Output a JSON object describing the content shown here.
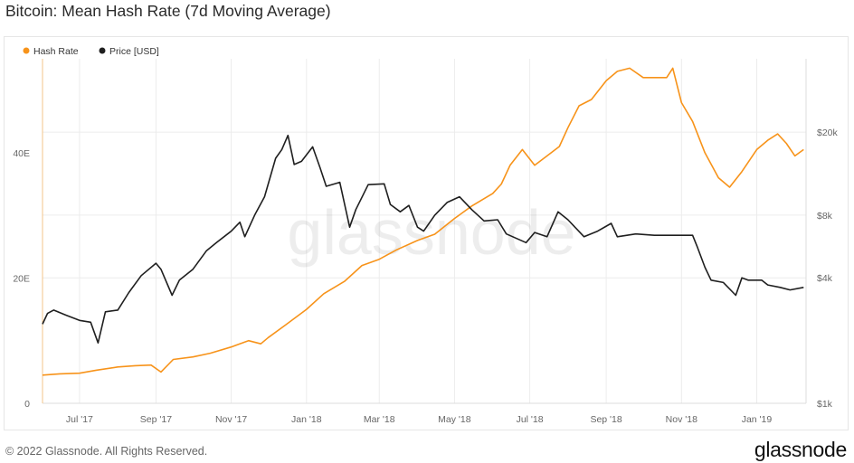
{
  "title": "Bitcoin: Mean Hash Rate (7d Moving Average)",
  "footer": {
    "copyright": "© 2022 Glassnode. All Rights Reserved.",
    "logo": "glassnode"
  },
  "watermark": "glassnode",
  "colors": {
    "hash_rate": "#f7931a",
    "price": "#1f1f1f",
    "grid": "#ececec",
    "axis_text": "#666666"
  },
  "chart_data": {
    "type": "line",
    "legend": {
      "placement": "top-left",
      "items": [
        "Hash Rate",
        "Price [USD]"
      ]
    },
    "grid": true,
    "x_range": [
      "2017-06-01",
      "2019-02-10"
    ],
    "x_ticks": [
      {
        "date": "2017-07-01",
        "label": "Jul '17"
      },
      {
        "date": "2017-09-01",
        "label": "Sep '17"
      },
      {
        "date": "2017-11-01",
        "label": "Nov '17"
      },
      {
        "date": "2018-01-01",
        "label": "Jan '18"
      },
      {
        "date": "2018-03-01",
        "label": "Mar '18"
      },
      {
        "date": "2018-05-01",
        "label": "May '18"
      },
      {
        "date": "2018-07-01",
        "label": "Jul '18"
      },
      {
        "date": "2018-09-01",
        "label": "Sep '18"
      },
      {
        "date": "2018-11-01",
        "label": "Nov '18"
      },
      {
        "date": "2019-01-01",
        "label": "Jan '19"
      }
    ],
    "y_left": {
      "range": [
        0,
        55
      ],
      "unit": "E",
      "ticks": [
        {
          "value": 0,
          "label": "0"
        },
        {
          "value": 20,
          "label": "20E"
        },
        {
          "value": 40,
          "label": "40E"
        }
      ]
    },
    "y_right": {
      "scale": "log",
      "range": [
        1000,
        45000
      ],
      "ticks": [
        {
          "value": 1000,
          "label": "$1k"
        },
        {
          "value": 4000,
          "label": "$4k"
        },
        {
          "value": 8000,
          "label": "$8k"
        },
        {
          "value": 20000,
          "label": "$20k"
        }
      ]
    },
    "series": [
      {
        "name": "Hash Rate",
        "axis": "left",
        "points": [
          [
            "2017-06-01",
            4.5
          ],
          [
            "2017-06-15",
            4.7
          ],
          [
            "2017-07-01",
            4.8
          ],
          [
            "2017-07-15",
            5.3
          ],
          [
            "2017-08-01",
            5.8
          ],
          [
            "2017-08-15",
            6.0
          ],
          [
            "2017-08-28",
            6.1
          ],
          [
            "2017-09-05",
            5.0
          ],
          [
            "2017-09-15",
            7.0
          ],
          [
            "2017-10-01",
            7.4
          ],
          [
            "2017-10-15",
            8.0
          ],
          [
            "2017-11-01",
            9.0
          ],
          [
            "2017-11-15",
            10.0
          ],
          [
            "2017-11-25",
            9.5
          ],
          [
            "2017-12-01",
            10.5
          ],
          [
            "2017-12-15",
            12.5
          ],
          [
            "2018-01-01",
            15.0
          ],
          [
            "2018-01-15",
            17.5
          ],
          [
            "2018-02-01",
            19.5
          ],
          [
            "2018-02-15",
            22.0
          ],
          [
            "2018-03-01",
            23.0
          ],
          [
            "2018-03-15",
            24.5
          ],
          [
            "2018-04-01",
            26.0
          ],
          [
            "2018-04-15",
            27.0
          ],
          [
            "2018-05-01",
            29.5
          ],
          [
            "2018-05-15",
            31.5
          ],
          [
            "2018-06-01",
            33.5
          ],
          [
            "2018-06-08",
            35.0
          ],
          [
            "2018-06-15",
            38.0
          ],
          [
            "2018-06-25",
            40.5
          ],
          [
            "2018-07-05",
            38.0
          ],
          [
            "2018-07-15",
            39.5
          ],
          [
            "2018-07-25",
            41.0
          ],
          [
            "2018-08-01",
            44.0
          ],
          [
            "2018-08-10",
            47.5
          ],
          [
            "2018-08-20",
            48.5
          ],
          [
            "2018-09-01",
            51.5
          ],
          [
            "2018-09-10",
            53.0
          ],
          [
            "2018-09-20",
            53.5
          ],
          [
            "2018-10-01",
            52.0
          ],
          [
            "2018-10-10",
            52.0
          ],
          [
            "2018-10-20",
            52.0
          ],
          [
            "2018-10-25",
            53.5
          ],
          [
            "2018-11-01",
            48.0
          ],
          [
            "2018-11-10",
            45.0
          ],
          [
            "2018-11-20",
            40.0
          ],
          [
            "2018-12-01",
            36.0
          ],
          [
            "2018-12-10",
            34.5
          ],
          [
            "2018-12-20",
            37.0
          ],
          [
            "2019-01-01",
            40.5
          ],
          [
            "2019-01-10",
            42.0
          ],
          [
            "2019-01-18",
            43.0
          ],
          [
            "2019-01-25",
            41.5
          ],
          [
            "2019-02-01",
            39.5
          ],
          [
            "2019-02-08",
            40.5
          ]
        ]
      },
      {
        "name": "Price [USD]",
        "axis": "right",
        "points": [
          [
            "2017-06-01",
            2400
          ],
          [
            "2017-06-05",
            2700
          ],
          [
            "2017-06-10",
            2800
          ],
          [
            "2017-06-20",
            2650
          ],
          [
            "2017-07-01",
            2500
          ],
          [
            "2017-07-10",
            2450
          ],
          [
            "2017-07-16",
            1950
          ],
          [
            "2017-07-22",
            2750
          ],
          [
            "2017-08-01",
            2800
          ],
          [
            "2017-08-10",
            3400
          ],
          [
            "2017-08-20",
            4100
          ],
          [
            "2017-09-01",
            4700
          ],
          [
            "2017-09-05",
            4400
          ],
          [
            "2017-09-14",
            3300
          ],
          [
            "2017-09-20",
            3900
          ],
          [
            "2017-10-01",
            4400
          ],
          [
            "2017-10-12",
            5400
          ],
          [
            "2017-10-20",
            5900
          ],
          [
            "2017-11-01",
            6700
          ],
          [
            "2017-11-08",
            7400
          ],
          [
            "2017-11-12",
            6300
          ],
          [
            "2017-11-20",
            8000
          ],
          [
            "2017-11-28",
            9800
          ],
          [
            "2017-12-07",
            15000
          ],
          [
            "2017-12-12",
            16500
          ],
          [
            "2017-12-17",
            19300
          ],
          [
            "2017-12-22",
            14000
          ],
          [
            "2017-12-28",
            14500
          ],
          [
            "2018-01-06",
            17000
          ],
          [
            "2018-01-12",
            13500
          ],
          [
            "2018-01-17",
            11000
          ],
          [
            "2018-01-28",
            11500
          ],
          [
            "2018-02-05",
            7000
          ],
          [
            "2018-02-10",
            8500
          ],
          [
            "2018-02-20",
            11200
          ],
          [
            "2018-03-05",
            11300
          ],
          [
            "2018-03-10",
            9000
          ],
          [
            "2018-03-18",
            8300
          ],
          [
            "2018-03-25",
            8900
          ],
          [
            "2018-04-01",
            7000
          ],
          [
            "2018-04-06",
            6700
          ],
          [
            "2018-04-15",
            8000
          ],
          [
            "2018-04-25",
            9200
          ],
          [
            "2018-05-05",
            9800
          ],
          [
            "2018-05-15",
            8500
          ],
          [
            "2018-05-25",
            7500
          ],
          [
            "2018-06-05",
            7600
          ],
          [
            "2018-06-12",
            6500
          ],
          [
            "2018-06-28",
            5900
          ],
          [
            "2018-07-05",
            6600
          ],
          [
            "2018-07-15",
            6300
          ],
          [
            "2018-07-24",
            8300
          ],
          [
            "2018-08-01",
            7600
          ],
          [
            "2018-08-14",
            6300
          ],
          [
            "2018-08-25",
            6700
          ],
          [
            "2018-09-05",
            7300
          ],
          [
            "2018-09-10",
            6300
          ],
          [
            "2018-09-25",
            6500
          ],
          [
            "2018-10-10",
            6400
          ],
          [
            "2018-10-25",
            6400
          ],
          [
            "2018-11-10",
            6400
          ],
          [
            "2018-11-14",
            5600
          ],
          [
            "2018-11-20",
            4500
          ],
          [
            "2018-11-25",
            3900
          ],
          [
            "2018-12-05",
            3800
          ],
          [
            "2018-12-15",
            3300
          ],
          [
            "2018-12-20",
            4000
          ],
          [
            "2018-12-25",
            3900
          ],
          [
            "2019-01-05",
            3900
          ],
          [
            "2019-01-10",
            3700
          ],
          [
            "2019-01-20",
            3600
          ],
          [
            "2019-01-28",
            3500
          ],
          [
            "2019-02-08",
            3600
          ]
        ]
      }
    ]
  }
}
